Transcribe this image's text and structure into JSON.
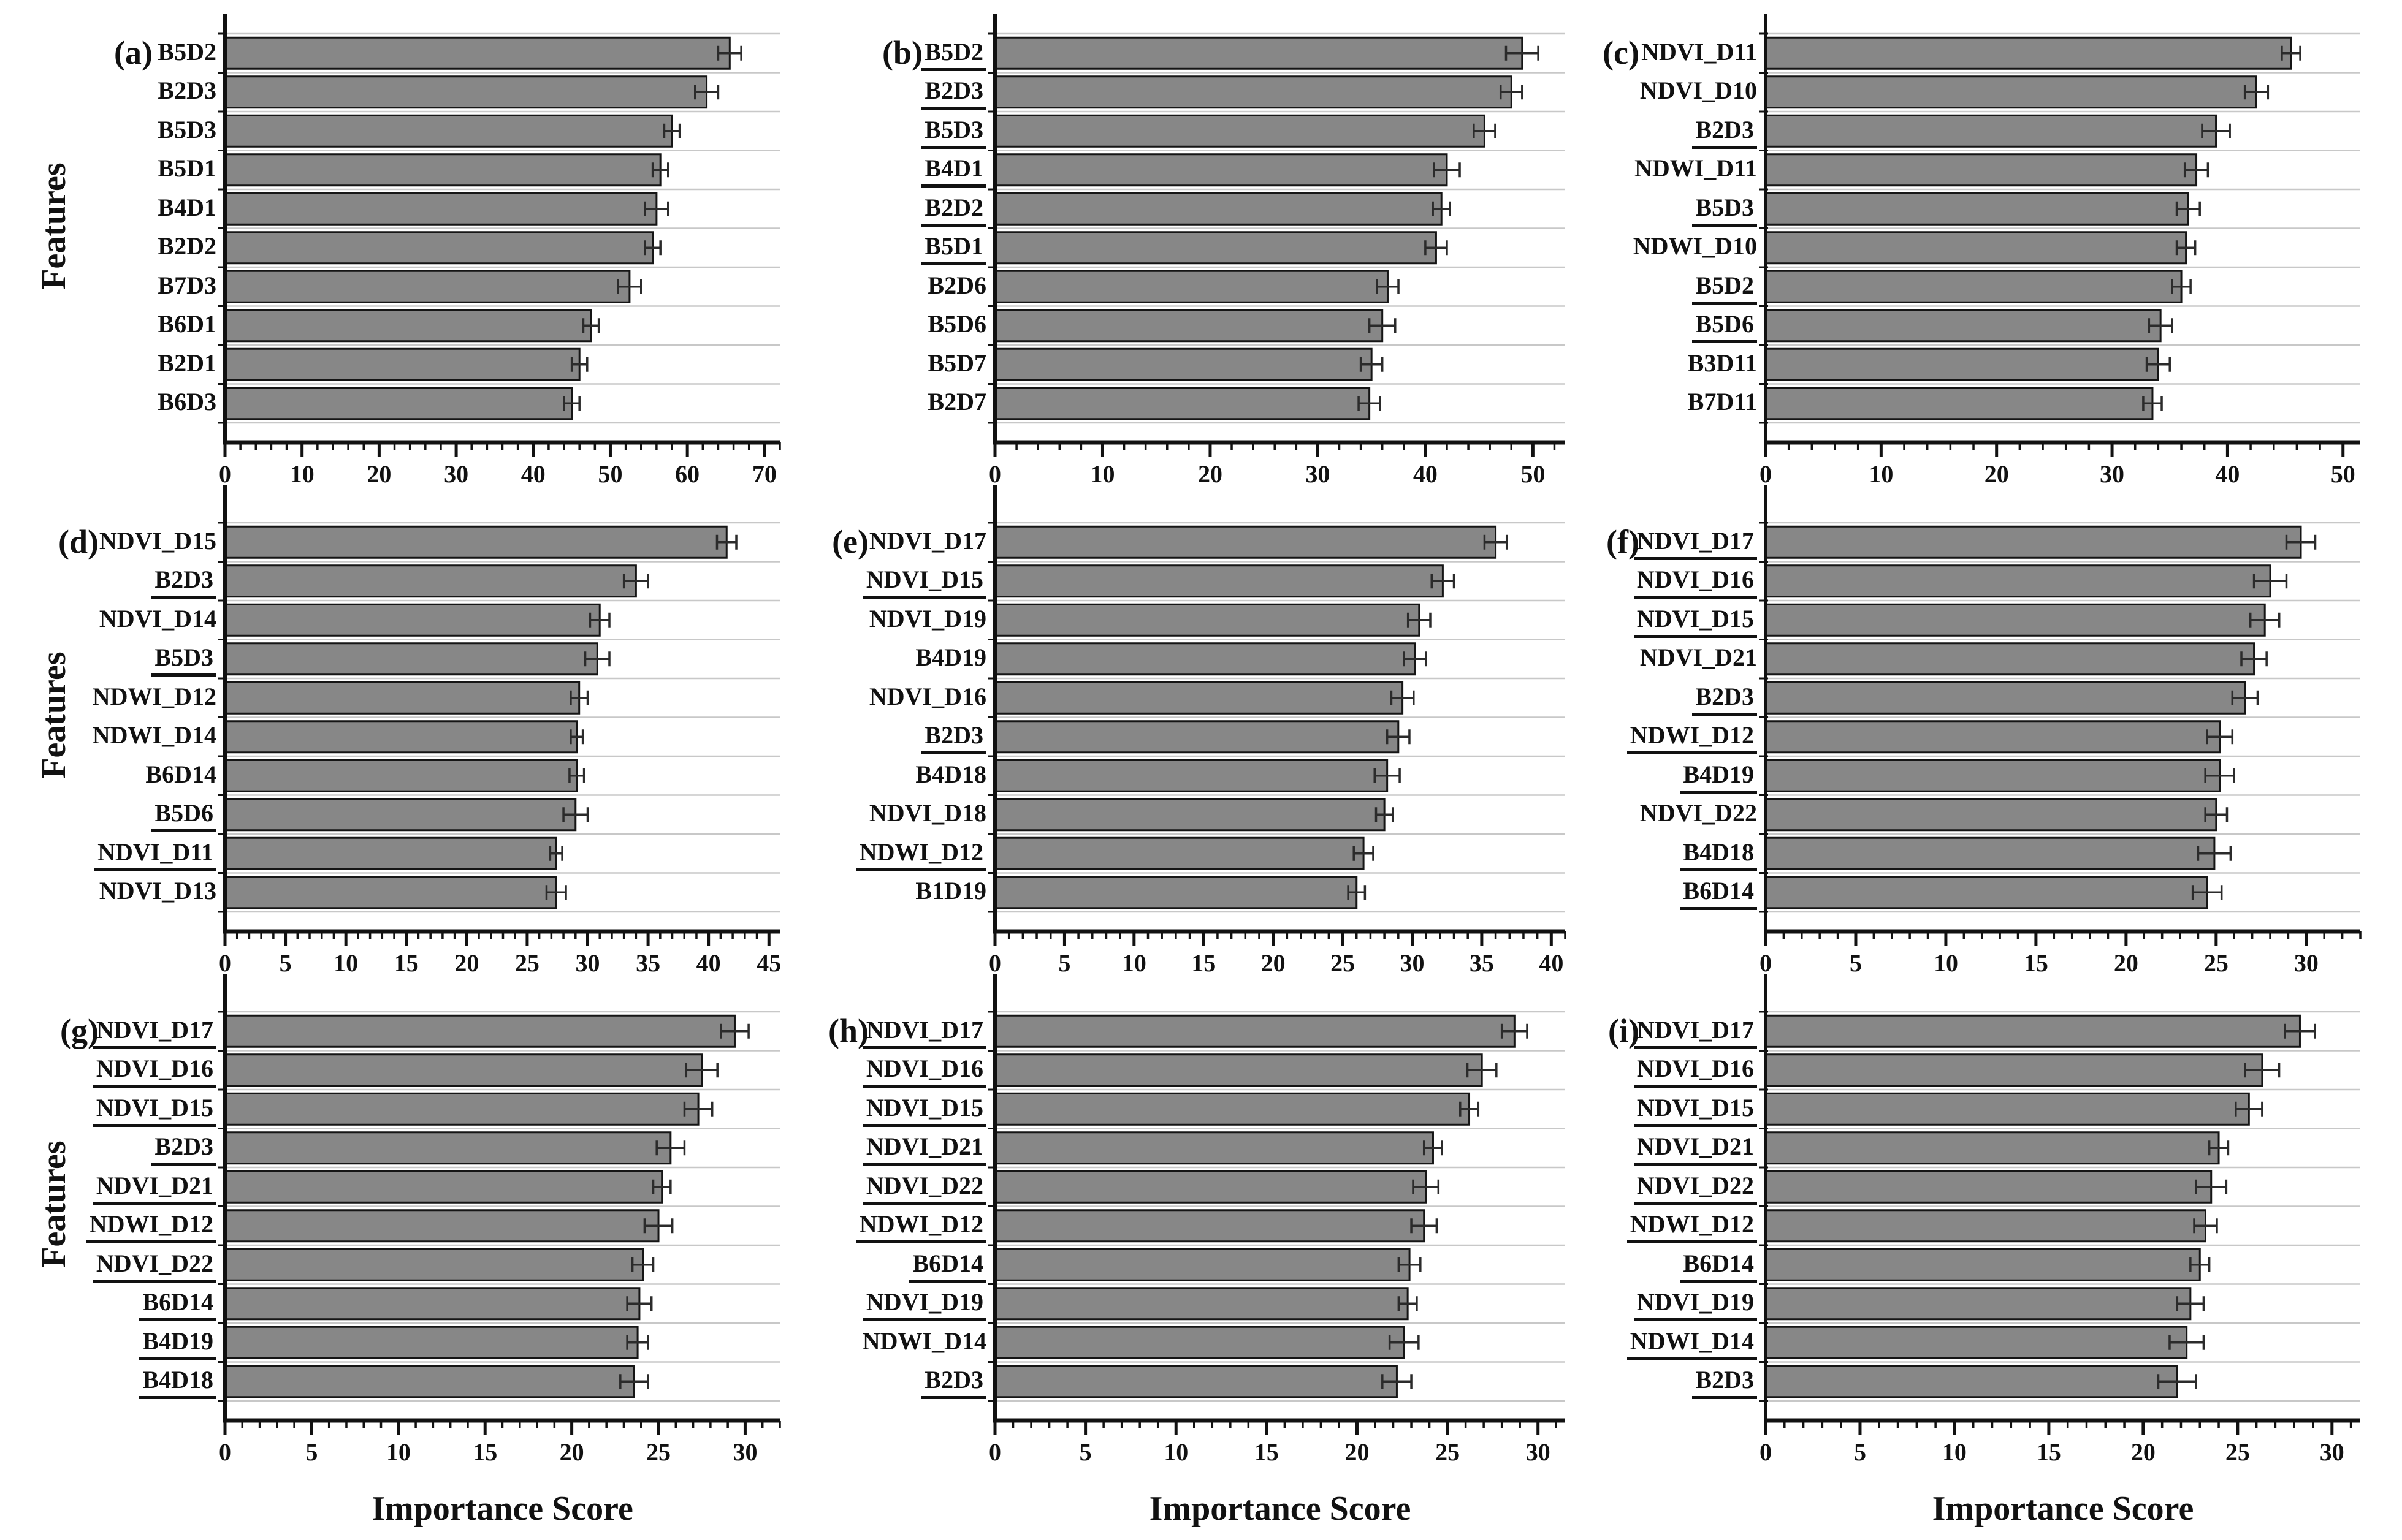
{
  "figure": {
    "ylabel": "Features",
    "xlabel": "Importance Score",
    "colors": {
      "bar_fill": "#878787",
      "bar_edge": "#151515",
      "error_bar": "#2b2b2b",
      "gridline": "#c8c8c8",
      "axis": "#111111",
      "text": "#111111",
      "background": "#ffffff"
    }
  },
  "chart_data": [
    {
      "type": "bar",
      "orientation": "horizontal",
      "panel": "(a)",
      "features": [
        "B5D2",
        "B2D3",
        "B5D3",
        "B5D1",
        "B4D1",
        "B2D2",
        "B7D3",
        "B6D1",
        "B2D1",
        "B6D3"
      ],
      "values": [
        65.5,
        62.5,
        58.0,
        56.5,
        56.0,
        55.5,
        52.5,
        47.5,
        46.0,
        45.0
      ],
      "errors": [
        1.5,
        1.5,
        1.0,
        1.0,
        1.5,
        1.0,
        1.5,
        1.0,
        1.0,
        1.0
      ],
      "underlined": [
        false,
        false,
        false,
        false,
        false,
        false,
        false,
        false,
        false,
        false
      ],
      "xticks": [
        0,
        10,
        20,
        30,
        40,
        50,
        60,
        70
      ],
      "minor_step": 2,
      "xlim": [
        0,
        72
      ],
      "grid": true
    },
    {
      "type": "bar",
      "orientation": "horizontal",
      "panel": "(b)",
      "features": [
        "B5D2",
        "B2D3",
        "B5D3",
        "B4D1",
        "B2D2",
        "B5D1",
        "B2D6",
        "B5D6",
        "B5D7",
        "B2D7"
      ],
      "values": [
        49.0,
        48.0,
        45.5,
        42.0,
        41.5,
        41.0,
        36.5,
        36.0,
        35.0,
        34.8
      ],
      "errors": [
        1.5,
        1.0,
        1.0,
        1.2,
        0.8,
        1.0,
        1.0,
        1.2,
        1.0,
        1.0
      ],
      "underlined": [
        true,
        true,
        true,
        true,
        true,
        true,
        false,
        false,
        false,
        false
      ],
      "xticks": [
        0,
        10,
        20,
        30,
        40,
        50
      ],
      "minor_step": 2,
      "xlim": [
        0,
        53
      ],
      "grid": true
    },
    {
      "type": "bar",
      "orientation": "horizontal",
      "panel": "(c)",
      "features": [
        "NDVI_D11",
        "NDVI_D10",
        "B2D3",
        "NDWI_D11",
        "B5D3",
        "NDWI_D10",
        "B5D2",
        "B5D6",
        "B3D11",
        "B7D11"
      ],
      "values": [
        45.5,
        42.5,
        39.0,
        37.3,
        36.6,
        36.4,
        36.0,
        34.2,
        34.0,
        33.5
      ],
      "errors": [
        0.8,
        1.0,
        1.2,
        1.0,
        1.0,
        0.8,
        0.8,
        1.0,
        1.0,
        0.8
      ],
      "underlined": [
        false,
        false,
        true,
        false,
        true,
        false,
        true,
        true,
        false,
        false
      ],
      "xticks": [
        0,
        10,
        20,
        30,
        40,
        50
      ],
      "minor_step": 2,
      "xlim": [
        0,
        51.5
      ],
      "grid": true
    },
    {
      "type": "bar",
      "orientation": "horizontal",
      "panel": "(d)",
      "features": [
        "NDVI_D15",
        "B2D3",
        "NDVI_D14",
        "B5D3",
        "NDWI_D12",
        "NDWI_D14",
        "B6D14",
        "B5D6",
        "NDVI_D11",
        "NDVI_D13"
      ],
      "values": [
        41.5,
        34.0,
        31.0,
        30.8,
        29.3,
        29.1,
        29.1,
        29.0,
        27.4,
        27.4
      ],
      "errors": [
        0.8,
        1.0,
        0.8,
        1.0,
        0.7,
        0.5,
        0.6,
        1.0,
        0.5,
        0.8
      ],
      "underlined": [
        false,
        true,
        false,
        true,
        false,
        false,
        false,
        true,
        true,
        false
      ],
      "xticks": [
        0,
        5,
        10,
        15,
        20,
        25,
        30,
        35,
        40,
        45
      ],
      "minor_step": 1,
      "xlim": [
        0,
        45.9
      ],
      "grid": true
    },
    {
      "type": "bar",
      "orientation": "horizontal",
      "panel": "(e)",
      "features": [
        "NDVI_D17",
        "NDVI_D15",
        "NDVI_D19",
        "B4D19",
        "NDVI_D16",
        "B2D3",
        "B4D18",
        "NDVI_D18",
        "NDWI_D12",
        "B1D19"
      ],
      "values": [
        36.0,
        32.2,
        30.5,
        30.2,
        29.3,
        29.0,
        28.2,
        28.0,
        26.5,
        26.0
      ],
      "errors": [
        0.8,
        0.8,
        0.8,
        0.8,
        0.8,
        0.8,
        0.9,
        0.6,
        0.7,
        0.6
      ],
      "underlined": [
        false,
        true,
        false,
        false,
        false,
        true,
        false,
        false,
        true,
        false
      ],
      "xticks": [
        0,
        5,
        10,
        15,
        20,
        25,
        30,
        35,
        40
      ],
      "minor_step": 1,
      "xlim": [
        0,
        41
      ],
      "grid": true
    },
    {
      "type": "bar",
      "orientation": "horizontal",
      "panel": "(f)",
      "features": [
        "NDVI_D17",
        "NDVI_D16",
        "NDVI_D15",
        "NDVI_D21",
        "B2D3",
        "NDWI_D12",
        "B4D19",
        "NDVI_D22",
        "B4D18",
        "B6D14"
      ],
      "values": [
        29.7,
        28.0,
        27.7,
        27.1,
        26.6,
        25.2,
        25.2,
        25.0,
        24.9,
        24.5
      ],
      "errors": [
        0.8,
        0.9,
        0.8,
        0.7,
        0.7,
        0.7,
        0.8,
        0.6,
        0.9,
        0.8
      ],
      "underlined": [
        true,
        true,
        true,
        false,
        true,
        true,
        true,
        false,
        true,
        true
      ],
      "xticks": [
        0,
        5,
        10,
        15,
        20,
        25,
        30
      ],
      "minor_step": 1,
      "xlim": [
        0,
        33
      ],
      "grid": true
    },
    {
      "type": "bar",
      "orientation": "horizontal",
      "panel": "(g)",
      "features": [
        "NDVI_D17",
        "NDVI_D16",
        "NDVI_D15",
        "B2D3",
        "NDVI_D21",
        "NDWI_D12",
        "NDVI_D22",
        "B6D14",
        "B4D19",
        "B4D18"
      ],
      "values": [
        29.4,
        27.5,
        27.3,
        25.7,
        25.2,
        25.0,
        24.1,
        23.9,
        23.8,
        23.6
      ],
      "errors": [
        0.8,
        0.9,
        0.8,
        0.8,
        0.5,
        0.8,
        0.6,
        0.7,
        0.6,
        0.8
      ],
      "underlined": [
        true,
        true,
        true,
        true,
        true,
        true,
        true,
        true,
        true,
        true
      ],
      "xticks": [
        0,
        5,
        10,
        15,
        20,
        25,
        30
      ],
      "minor_step": 1,
      "xlim": [
        0,
        32
      ],
      "grid": true
    },
    {
      "type": "bar",
      "orientation": "horizontal",
      "panel": "(h)",
      "features": [
        "NDVI_D17",
        "NDVI_D16",
        "NDVI_D15",
        "NDVI_D21",
        "NDVI_D22",
        "NDWI_D12",
        "B6D14",
        "NDVI_D19",
        "NDWI_D14",
        "B2D3"
      ],
      "values": [
        28.7,
        26.9,
        26.2,
        24.2,
        23.8,
        23.7,
        22.9,
        22.8,
        22.6,
        22.2
      ],
      "errors": [
        0.7,
        0.8,
        0.5,
        0.5,
        0.7,
        0.7,
        0.6,
        0.5,
        0.8,
        0.8
      ],
      "underlined": [
        true,
        true,
        true,
        true,
        true,
        true,
        true,
        true,
        false,
        true
      ],
      "xticks": [
        0,
        5,
        10,
        15,
        20,
        25,
        30
      ],
      "minor_step": 1,
      "xlim": [
        0,
        31.5
      ],
      "grid": true
    },
    {
      "type": "bar",
      "orientation": "horizontal",
      "panel": "(i)",
      "features": [
        "NDVI_D17",
        "NDVI_D16",
        "NDVI_D15",
        "NDVI_D21",
        "NDVI_D22",
        "NDWI_D12",
        "B6D14",
        "NDVI_D19",
        "NDWI_D14",
        "B2D3"
      ],
      "values": [
        28.3,
        26.3,
        25.6,
        24.0,
        23.6,
        23.3,
        23.0,
        22.5,
        22.3,
        21.8
      ],
      "errors": [
        0.8,
        0.9,
        0.7,
        0.5,
        0.8,
        0.6,
        0.5,
        0.7,
        0.9,
        1.0
      ],
      "underlined": [
        true,
        true,
        true,
        true,
        true,
        true,
        true,
        true,
        true,
        true
      ],
      "xticks": [
        0,
        5,
        10,
        15,
        20,
        25,
        30
      ],
      "minor_step": 1,
      "xlim": [
        0,
        31.5
      ],
      "grid": true
    }
  ]
}
